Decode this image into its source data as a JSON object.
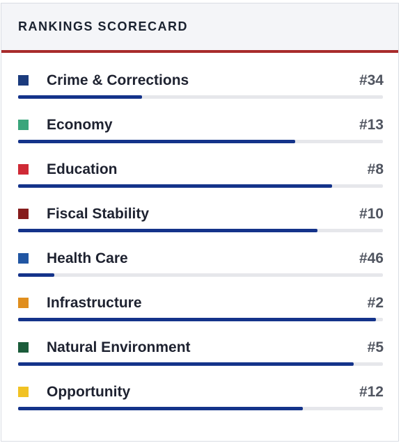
{
  "header": {
    "title": "RANKINGS SCORECARD"
  },
  "rankings": [
    {
      "label": "Crime & Corrections",
      "rank": "#34",
      "color": "#1b3b7d",
      "progress": 0.34
    },
    {
      "label": "Economy",
      "rank": "#13",
      "color": "#3aa57b",
      "progress": 0.76
    },
    {
      "label": "Education",
      "rank": "#8",
      "color": "#cf2a36",
      "progress": 0.86
    },
    {
      "label": "Fiscal Stability",
      "rank": "#10",
      "color": "#861c1c",
      "progress": 0.82
    },
    {
      "label": "Health Care",
      "rank": "#46",
      "color": "#2156a3",
      "progress": 0.1
    },
    {
      "label": "Infrastructure",
      "rank": "#2",
      "color": "#e08e1e",
      "progress": 0.98
    },
    {
      "label": "Natural Environment",
      "rank": "#5",
      "color": "#1b5c3a",
      "progress": 0.92
    },
    {
      "label": "Opportunity",
      "rank": "#12",
      "color": "#f1c224",
      "progress": 0.78
    }
  ]
}
